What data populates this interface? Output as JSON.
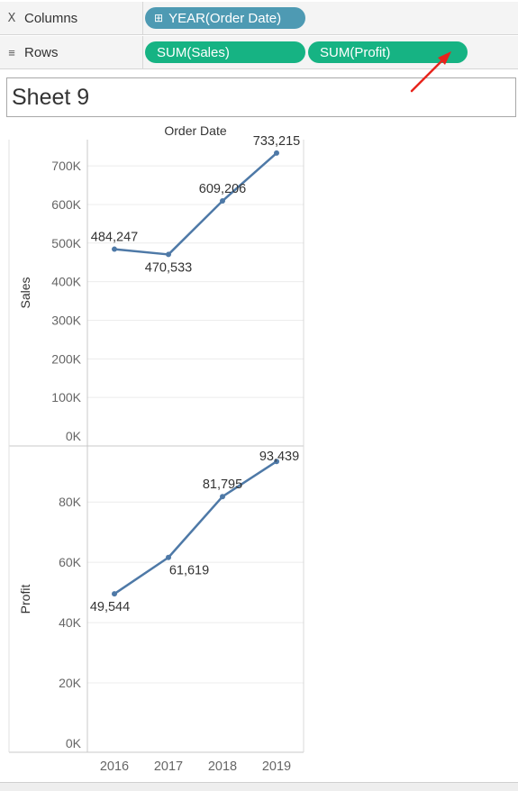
{
  "shelves": {
    "columns": {
      "label": "Columns",
      "pill": "YEAR(Order Date)",
      "pill_color": "#4e9ab3"
    },
    "rows": {
      "label": "Rows",
      "pills": [
        "SUM(Sales)",
        "SUM(Profit)"
      ],
      "pill_color": "#16b383"
    }
  },
  "sheet": {
    "title": "Sheet 9"
  },
  "annotation": {
    "arrow_color": "#e8241c"
  },
  "chart_data": {
    "type": "line",
    "header": "Order Date",
    "categories": [
      "2016",
      "2017",
      "2018",
      "2019"
    ],
    "line_color": "#4e79a7",
    "panes": [
      {
        "ylabel": "Sales",
        "values": [
          484247,
          470533,
          609206,
          733215
        ],
        "value_labels": [
          "484,247",
          "470,533",
          "609,206",
          "733,215"
        ],
        "yticks": [
          0,
          100000,
          200000,
          300000,
          400000,
          500000,
          600000,
          700000
        ],
        "ytick_labels": [
          "0K",
          "100K",
          "200K",
          "300K",
          "400K",
          "500K",
          "600K",
          "700K"
        ],
        "ylim": [
          0,
          740000
        ]
      },
      {
        "ylabel": "Profit",
        "values": [
          49544,
          61619,
          81795,
          93439
        ],
        "value_labels": [
          "49,544",
          "61,619",
          "81,795",
          "93,439"
        ],
        "yticks": [
          0,
          20000,
          40000,
          60000,
          80000
        ],
        "ytick_labels": [
          "0K",
          "20K",
          "40K",
          "60K",
          "80K"
        ],
        "ylim": [
          0,
          95000
        ]
      }
    ]
  }
}
